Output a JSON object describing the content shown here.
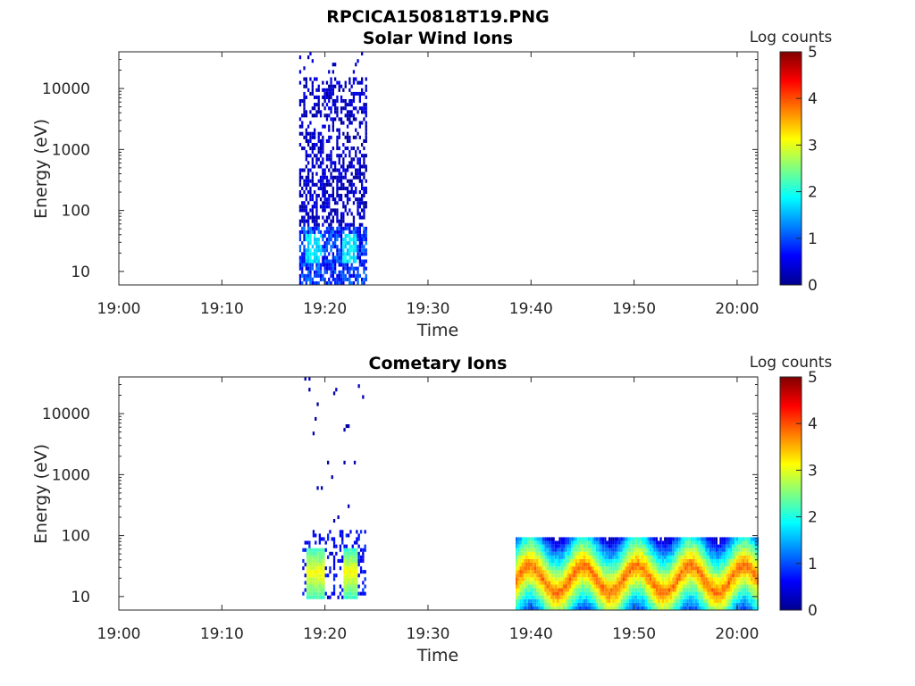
{
  "figure_title": "RPCICA150818T19.PNG",
  "colorscale": [
    "#00008f",
    "#0000ff",
    "#0080ff",
    "#00ffff",
    "#80ff80",
    "#ffff00",
    "#ff8000",
    "#ff0000",
    "#800000"
  ],
  "chart_data": [
    {
      "type": "heatmap",
      "title": "Solar Wind Ions",
      "xlabel": "Time",
      "ylabel": "Energy (eV)",
      "y_scale": "log",
      "ylim": [
        6,
        40000
      ],
      "xlim": [
        "19:00",
        "20:02"
      ],
      "x_ticks": [
        "19:00",
        "19:10",
        "19:20",
        "19:30",
        "19:40",
        "19:50",
        "20:00"
      ],
      "y_ticks": [
        10,
        100,
        1000,
        10000
      ],
      "y_tick_labels": [
        "10",
        "100",
        "1000",
        "10000"
      ],
      "colorbar": {
        "label": "Log counts",
        "min": 0,
        "max": 5,
        "ticks": [
          "0",
          "1",
          "2",
          "3",
          "4",
          "5"
        ]
      },
      "regions": [
        {
          "t_start": "19:17.5",
          "t_end": "19:24",
          "e_min": 6,
          "e_max": 40000,
          "log_counts": "0-1.5 (sparse, mostly 0-0.5 above 100 eV)"
        },
        {
          "t_start": "19:18",
          "t_end": "19:19.5",
          "e_min": 12,
          "e_max": 40,
          "log_counts": 1.7
        },
        {
          "t_start": "19:21.5",
          "t_end": "19:23",
          "e_min": 12,
          "e_max": 40,
          "log_counts": 1.7
        }
      ]
    },
    {
      "type": "heatmap",
      "title": "Cometary Ions",
      "xlabel": "Time",
      "ylabel": "Energy (eV)",
      "y_scale": "log",
      "ylim": [
        6,
        40000
      ],
      "xlim": [
        "19:00",
        "20:02"
      ],
      "x_ticks": [
        "19:00",
        "19:10",
        "19:20",
        "19:30",
        "19:40",
        "19:50",
        "20:00"
      ],
      "y_ticks": [
        10,
        100,
        1000,
        10000
      ],
      "y_tick_labels": [
        "10",
        "100",
        "1000",
        "10000"
      ],
      "colorbar": {
        "label": "Log counts",
        "min": 0,
        "max": 5,
        "ticks": [
          "0",
          "1",
          "2",
          "3",
          "4",
          "5"
        ]
      },
      "regions": [
        {
          "t_start": "19:18",
          "t_end": "19:20",
          "e_min": 10,
          "e_max": 60,
          "log_counts": 2.8
        },
        {
          "t_start": "19:21.5",
          "t_end": "19:23",
          "e_min": 10,
          "e_max": 60,
          "log_counts": 2.8
        },
        {
          "t_start": "19:38.5",
          "t_end": "20:01",
          "e_min": 6,
          "e_max": 80,
          "log_counts": "1-4 (oscillating, peaks near 20-40 eV)"
        }
      ]
    }
  ]
}
